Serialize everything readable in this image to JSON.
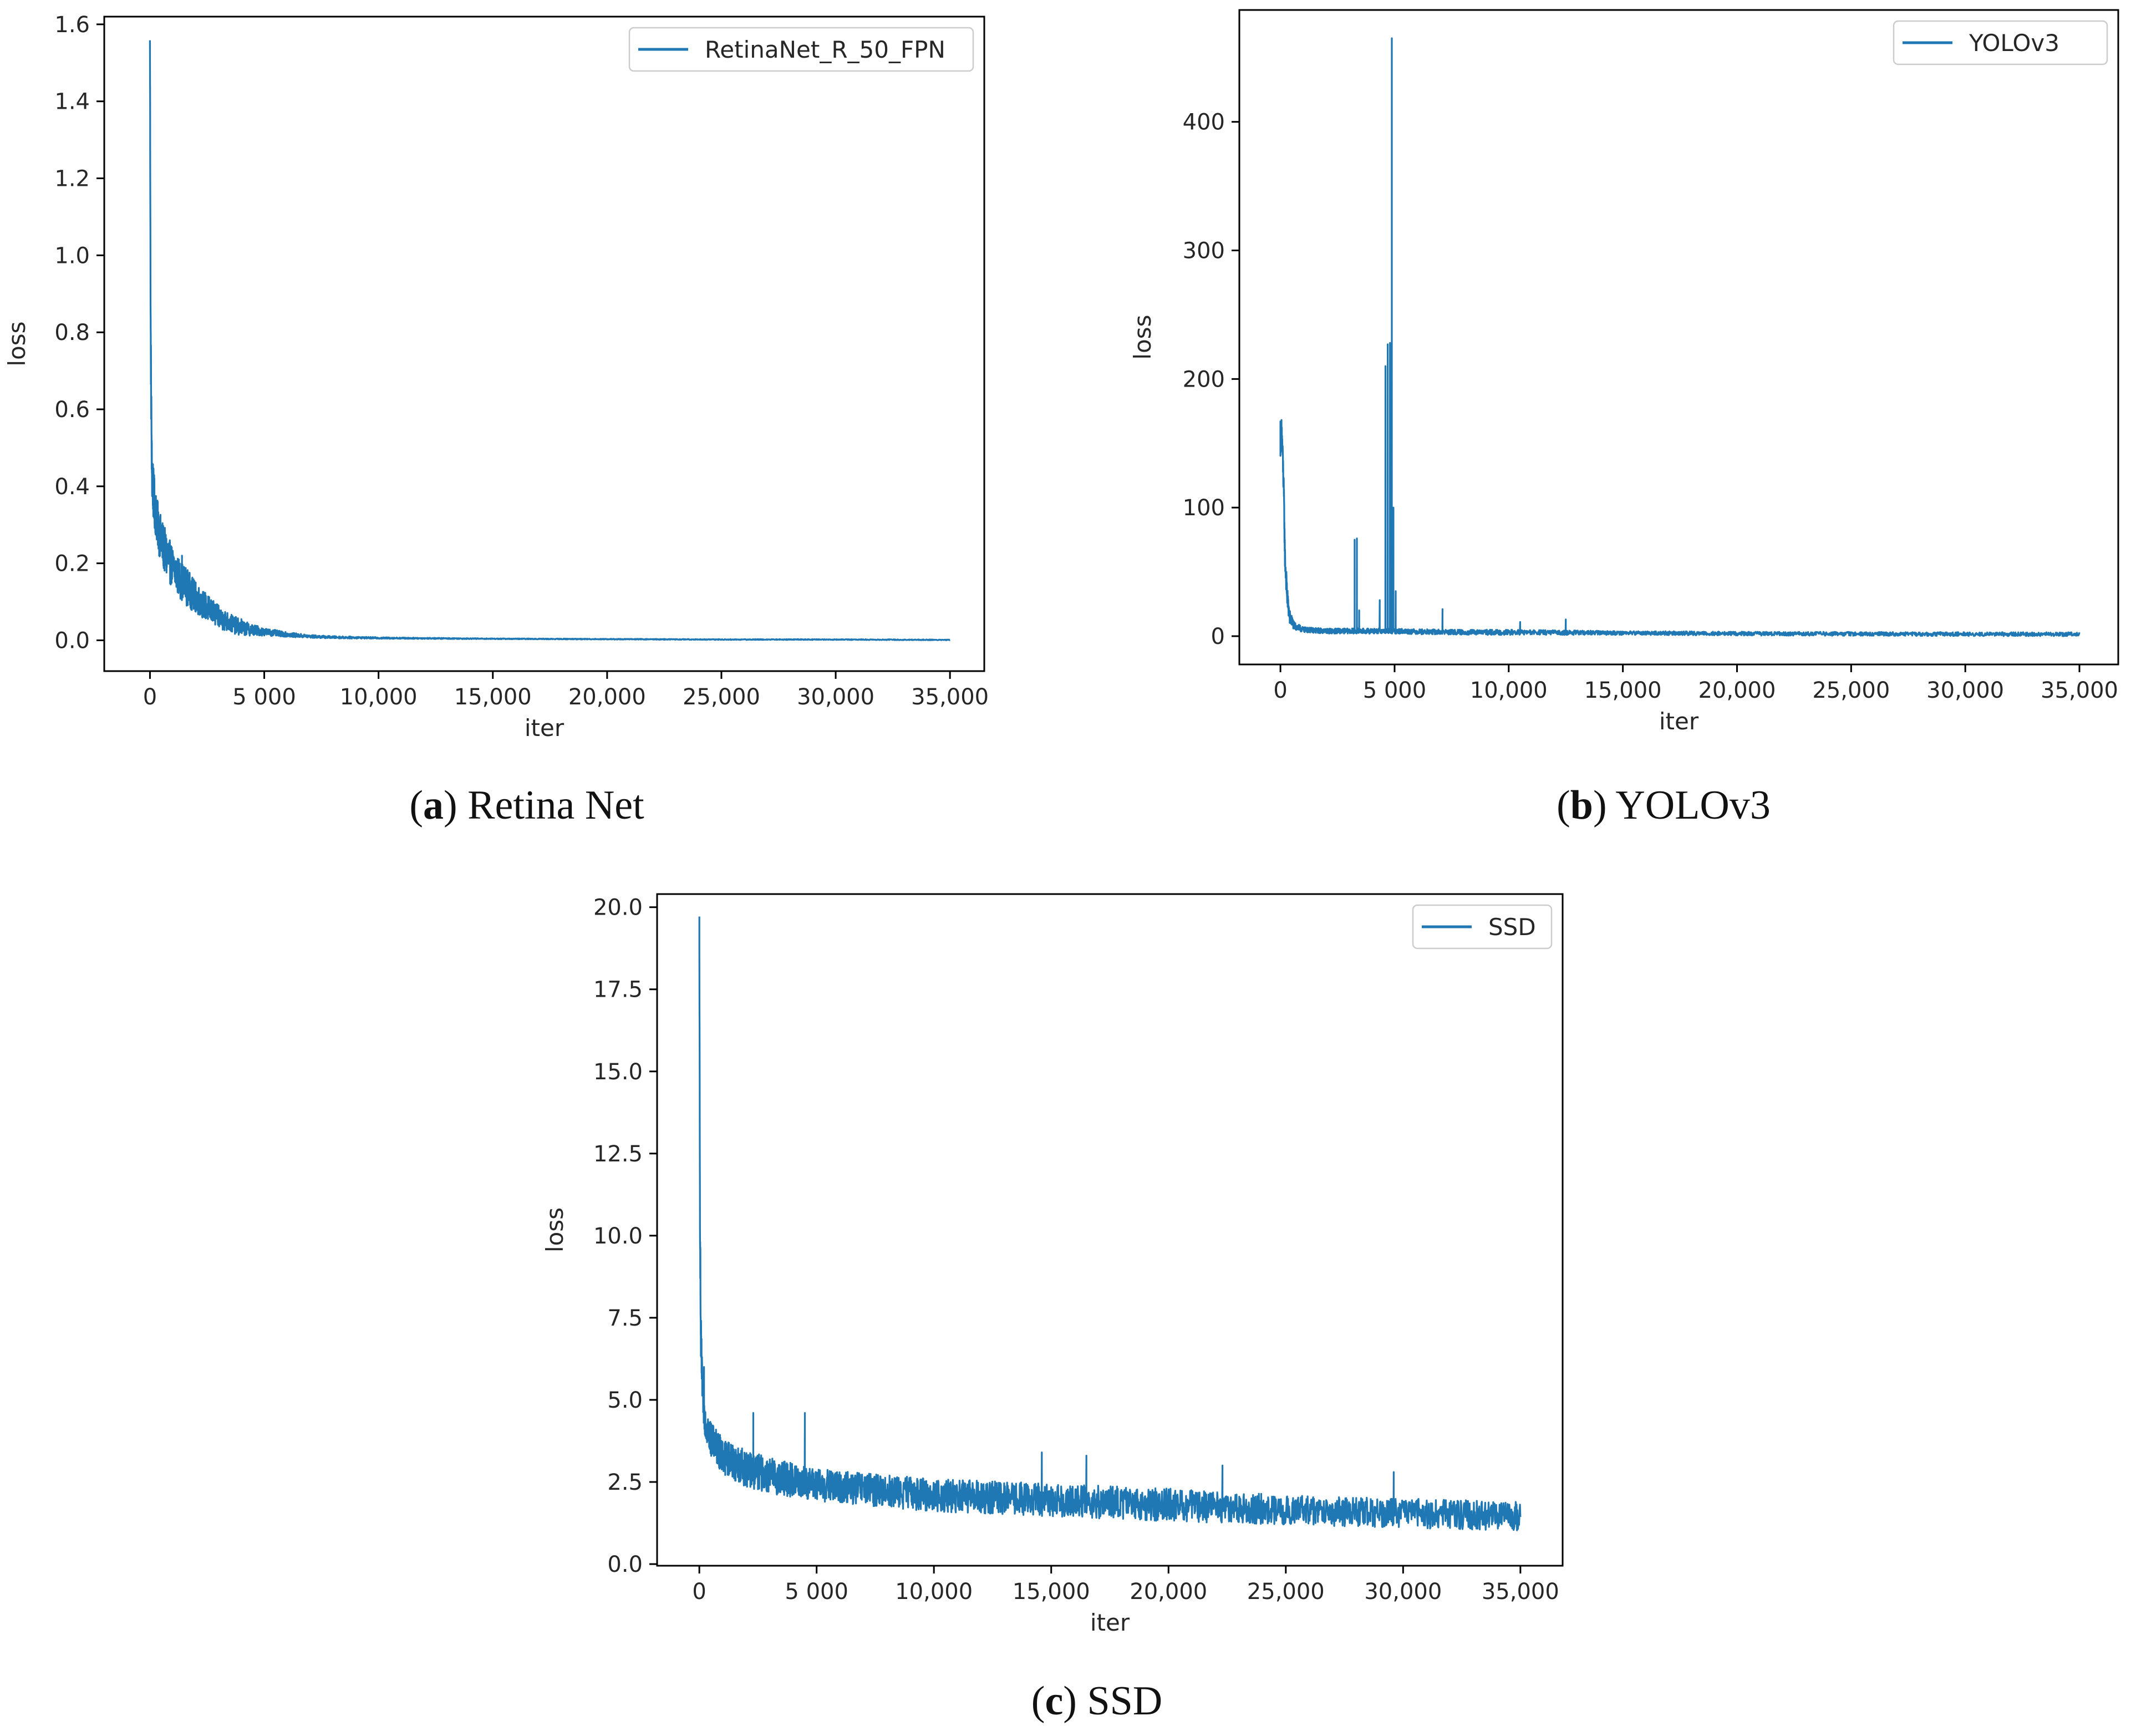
{
  "figure": {
    "captions": [
      {
        "letter": "a",
        "text": "Retina Net"
      },
      {
        "letter": "b",
        "text": "YOLOv3"
      },
      {
        "letter": "c",
        "text": "SSD"
      }
    ]
  },
  "chart_data": [
    {
      "type": "line",
      "id": "retinanet",
      "title": "",
      "xlabel": "iter",
      "ylabel": "loss",
      "xlim": [
        -2000,
        36500
      ],
      "ylim": [
        -0.08,
        1.62
      ],
      "xticks": [
        0,
        5000,
        10000,
        15000,
        20000,
        25000,
        30000,
        35000
      ],
      "xtick_labels": [
        "0",
        "5 000",
        "10,000",
        "15,000",
        "20,000",
        "25,000",
        "30,000",
        "35,000"
      ],
      "yticks": [
        0.0,
        0.2,
        0.4,
        0.6,
        0.8,
        1.0,
        1.2,
        1.4,
        1.6
      ],
      "ytick_labels": [
        "0.0",
        "0.2",
        "0.4",
        "0.6",
        "0.8",
        "1.0",
        "1.2",
        "1.4",
        "1.6"
      ],
      "legend": "top-right",
      "color": "#1f77b4",
      "series": [
        {
          "name": "RetinaNet_R_50_FPN",
          "x": [
            0,
            30,
            80,
            150,
            250,
            400,
            600,
            800,
            1000,
            1300,
            1600,
            2000,
            2500,
            3000,
            3500,
            4000,
            5000,
            6000,
            7000,
            8000,
            10000,
            15000,
            20000,
            25000,
            30000,
            35000
          ],
          "y": [
            1.55,
            0.8,
            0.45,
            0.38,
            0.33,
            0.28,
            0.24,
            0.21,
            0.19,
            0.16,
            0.14,
            0.11,
            0.085,
            0.06,
            0.045,
            0.032,
            0.022,
            0.015,
            0.01,
            0.008,
            0.006,
            0.004,
            0.003,
            0.002,
            0.002,
            0.001
          ],
          "noise": [
            0.02,
            0.08,
            0.08,
            0.07,
            0.06,
            0.06,
            0.06,
            0.06,
            0.05,
            0.05,
            0.05,
            0.04,
            0.035,
            0.03,
            0.025,
            0.02,
            0.01,
            0.006,
            0.004,
            0.003,
            0.002,
            0.001,
            0.001,
            0.001,
            0.001,
            0.001
          ],
          "spikes": [
            [
              0,
              1.55
            ],
            [
              100,
              0.41
            ],
            [
              400,
              0.31
            ],
            [
              800,
              0.25
            ],
            [
              1400,
              0.22
            ],
            [
              2000,
              0.15
            ],
            [
              3000,
              0.09
            ],
            [
              4000,
              0.055
            ]
          ]
        }
      ]
    },
    {
      "type": "line",
      "id": "yolov3",
      "title": "",
      "xlabel": "iter",
      "ylabel": "loss",
      "xlim": [
        -1800,
        36700
      ],
      "ylim": [
        -22,
        487
      ],
      "xticks": [
        0,
        5000,
        10000,
        15000,
        20000,
        25000,
        30000,
        35000
      ],
      "xtick_labels": [
        "0",
        "5 000",
        "10,000",
        "15,000",
        "20,000",
        "25,000",
        "30,000",
        "35,000"
      ],
      "yticks": [
        0,
        100,
        200,
        300,
        400
      ],
      "ytick_labels": [
        "0",
        "100",
        "200",
        "300",
        "400"
      ],
      "legend": "top-right",
      "color": "#1f77b4",
      "series": [
        {
          "name": "YOLOv3",
          "x": [
            0,
            50,
            100,
            150,
            200,
            300,
            400,
            600,
            1000,
            2000,
            3000,
            4000,
            5000,
            6000,
            8000,
            10000,
            15000,
            20000,
            25000,
            30000,
            35000
          ],
          "y": [
            150,
            160,
            140,
            110,
            60,
            30,
            15,
            8,
            5,
            4,
            4,
            4,
            4,
            3.5,
            3,
            3,
            2.5,
            2,
            1.8,
            1.6,
            1.5
          ],
          "noise": [
            10,
            10,
            10,
            10,
            10,
            8,
            6,
            3,
            2,
            2,
            2,
            2,
            2,
            2,
            2,
            2,
            1.5,
            1.5,
            1.5,
            1.5,
            1.5
          ],
          "spikes": [
            [
              0,
              167
            ],
            [
              60,
              162
            ],
            [
              3250,
              75
            ],
            [
              3350,
              76
            ],
            [
              3450,
              20
            ],
            [
              4350,
              28
            ],
            [
              4600,
              210
            ],
            [
              4700,
              227
            ],
            [
              4800,
              228
            ],
            [
              4880,
              465
            ],
            [
              4950,
              100
            ],
            [
              5050,
              35
            ],
            [
              7100,
              21
            ],
            [
              10500,
              11
            ],
            [
              12500,
              13
            ]
          ]
        }
      ]
    },
    {
      "type": "line",
      "id": "ssd",
      "title": "",
      "xlabel": "iter",
      "ylabel": "loss",
      "xlim": [
        -1800,
        36800
      ],
      "ylim": [
        -0.05,
        20.4
      ],
      "xticks": [
        0,
        5000,
        10000,
        15000,
        20000,
        25000,
        30000,
        35000
      ],
      "xtick_labels": [
        "0",
        "5 000",
        "10,000",
        "15,000",
        "20,000",
        "25,000",
        "30,000",
        "35,000"
      ],
      "yticks": [
        0.0,
        2.5,
        5.0,
        7.5,
        10.0,
        12.5,
        15.0,
        17.5,
        20.0
      ],
      "ytick_labels": [
        "0.0",
        "2.5",
        "5.0",
        "7.5",
        "10.0",
        "12.5",
        "15.0",
        "17.5",
        "20.0"
      ],
      "legend": "top-right",
      "color": "#1f77b4",
      "series": [
        {
          "name": "SSD",
          "x": [
            0,
            20,
            60,
            120,
            200,
            300,
            500,
            1000,
            2000,
            3000,
            5000,
            7500,
            10000,
            15000,
            20000,
            25000,
            30000,
            35000
          ],
          "y": [
            19.6,
            12.0,
            7.0,
            5.5,
            4.6,
            4.2,
            3.8,
            3.3,
            2.9,
            2.7,
            2.4,
            2.25,
            2.1,
            1.95,
            1.8,
            1.65,
            1.55,
            1.45
          ],
          "noise": [
            0.2,
            1.0,
            0.8,
            0.6,
            0.5,
            0.5,
            0.5,
            0.55,
            0.55,
            0.55,
            0.5,
            0.5,
            0.5,
            0.5,
            0.5,
            0.45,
            0.45,
            0.45
          ],
          "spikes": [
            [
              0,
              19.6
            ],
            [
              60,
              7.1
            ],
            [
              200,
              6.0
            ],
            [
              2300,
              4.6
            ],
            [
              4500,
              4.6
            ],
            [
              14600,
              3.4
            ],
            [
              16500,
              3.3
            ],
            [
              22300,
              3.0
            ],
            [
              29600,
              2.8
            ]
          ]
        }
      ]
    }
  ]
}
